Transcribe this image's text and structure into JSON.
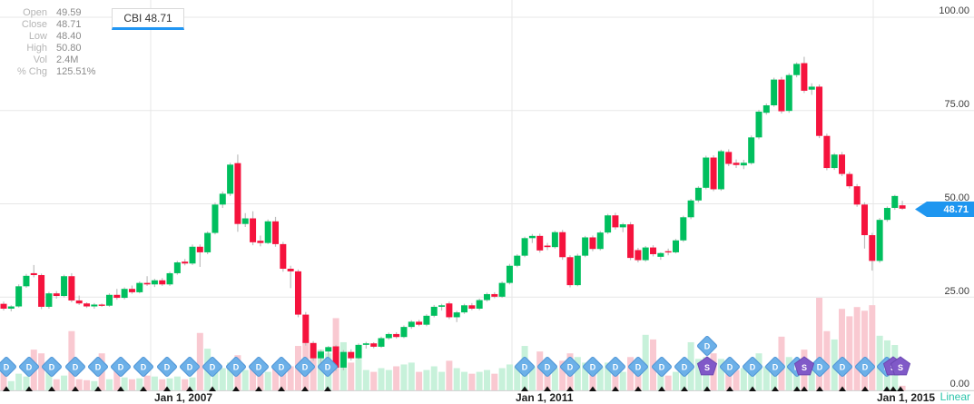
{
  "symbol_tab": {
    "label": "CBI 48.71"
  },
  "legend": {
    "rows": [
      {
        "label": "Open",
        "value": "49.59"
      },
      {
        "label": "Close",
        "value": "48.71"
      },
      {
        "label": "Low",
        "value": "48.40"
      },
      {
        "label": "High",
        "value": "50.80"
      },
      {
        "label": "Vol",
        "value": "2.4M"
      },
      {
        "label": "% Chg",
        "value": "125.51%"
      }
    ]
  },
  "price_tag": {
    "value": "48.71",
    "color": "#1e96f0"
  },
  "footer": {
    "scale_label": "Linear"
  },
  "chart_data": {
    "type": "candlestick",
    "title": "CBI monthly candlestick chart with volume, dividend (D) and split (S) markers",
    "ylim": [
      0,
      104
    ],
    "grid": true,
    "y_ticks": [
      {
        "value": 100,
        "label": "100.00"
      },
      {
        "value": 75,
        "label": "75.00"
      },
      {
        "value": 50,
        "label": "50.00"
      },
      {
        "value": 25,
        "label": "25.00"
      },
      {
        "value": 0,
        "label": "0.00"
      }
    ],
    "x_ticks": [
      {
        "px": 166,
        "label": "Jan 1, 2007"
      },
      {
        "px": 564,
        "label": "Jan 1, 2011"
      },
      {
        "px": 962,
        "label": "Jan 1, 2015"
      }
    ],
    "last_bar": {
      "open": 49.59,
      "close": 48.71,
      "low": 48.4,
      "high": 50.8,
      "vol": "2.4M",
      "pct_chg": "125.51%"
    },
    "candles": [
      [
        23.2,
        23.8,
        21.4,
        21.9,
        29
      ],
      [
        21.9,
        22.8,
        21.2,
        22.5,
        10
      ],
      [
        22.5,
        28.4,
        22.2,
        27.9,
        18
      ],
      [
        27.9,
        31.2,
        27.5,
        30.7,
        15
      ],
      [
        31.4,
        33.6,
        30.3,
        30.9,
        44
      ],
      [
        30.9,
        31.3,
        21.8,
        22.4,
        40
      ],
      [
        22.4,
        26.4,
        21.9,
        26.0,
        20
      ],
      [
        26.0,
        26.6,
        24.6,
        25.3,
        12
      ],
      [
        25.3,
        31.0,
        24.9,
        30.6,
        16
      ],
      [
        30.6,
        31.4,
        23.6,
        24.1,
        64
      ],
      [
        24.1,
        25.4,
        22.9,
        23.3,
        12
      ],
      [
        23.3,
        23.6,
        22.1,
        22.5,
        11
      ],
      [
        22.5,
        23.4,
        21.9,
        23.0,
        10
      ],
      [
        23.0,
        23.3,
        22.4,
        22.7,
        40
      ],
      [
        22.7,
        26.0,
        22.4,
        25.6,
        12
      ],
      [
        25.6,
        27.2,
        24.3,
        24.8,
        30
      ],
      [
        24.8,
        27.6,
        24.4,
        27.2,
        14
      ],
      [
        27.2,
        28.1,
        25.9,
        26.3,
        12
      ],
      [
        26.3,
        29.2,
        26.0,
        28.8,
        13
      ],
      [
        28.8,
        30.6,
        28.0,
        28.4,
        16
      ],
      [
        28.4,
        29.9,
        27.7,
        29.5,
        15
      ],
      [
        29.5,
        30.1,
        28.0,
        28.4,
        12
      ],
      [
        28.4,
        31.8,
        28.0,
        31.4,
        13
      ],
      [
        31.4,
        34.7,
        31.0,
        34.3,
        15
      ],
      [
        34.5,
        35.2,
        33.5,
        34.0,
        12
      ],
      [
        34.0,
        39.1,
        33.6,
        38.5,
        14
      ],
      [
        38.5,
        39.1,
        33.1,
        37.0,
        62
      ],
      [
        37.0,
        42.6,
        36.5,
        42.2,
        45
      ],
      [
        42.2,
        50.3,
        41.8,
        49.8,
        30
      ],
      [
        49.8,
        53.3,
        48.9,
        52.7,
        24
      ],
      [
        52.7,
        61.0,
        52.1,
        60.5,
        30
      ],
      [
        60.9,
        63.2,
        42.5,
        44.6,
        38
      ],
      [
        44.6,
        47.5,
        43.8,
        46.1,
        22
      ],
      [
        46.1,
        48.0,
        38.9,
        39.7,
        28
      ],
      [
        40.1,
        41.5,
        38.6,
        39.5,
        18
      ],
      [
        39.5,
        45.8,
        39.2,
        45.3,
        20
      ],
      [
        45.3,
        46.5,
        38.5,
        39.2,
        24
      ],
      [
        39.2,
        39.8,
        31.8,
        32.6,
        30
      ],
      [
        32.6,
        33.4,
        27.4,
        31.9,
        26
      ],
      [
        31.9,
        32.4,
        19.6,
        20.3,
        48
      ],
      [
        20.3,
        21.0,
        12.0,
        12.7,
        55
      ],
      [
        12.7,
        13.2,
        7.9,
        8.6,
        50
      ],
      [
        8.6,
        10.9,
        6.9,
        10.4,
        44
      ],
      [
        10.4,
        11.9,
        8.4,
        11.6,
        40
      ],
      [
        11.8,
        12.2,
        5.2,
        6.1,
        78
      ],
      [
        6.1,
        10.8,
        5.4,
        10.3,
        52
      ],
      [
        10.3,
        11.0,
        8.0,
        8.6,
        30
      ],
      [
        8.6,
        12.6,
        8.3,
        12.2,
        34
      ],
      [
        12.2,
        13.0,
        11.2,
        12.6,
        22
      ],
      [
        12.6,
        12.9,
        11.3,
        11.7,
        20
      ],
      [
        11.7,
        14.4,
        11.4,
        14.0,
        24
      ],
      [
        14.0,
        15.5,
        13.6,
        15.1,
        22
      ],
      [
        15.1,
        15.6,
        13.9,
        14.3,
        26
      ],
      [
        14.3,
        17.4,
        14.0,
        17.0,
        28
      ],
      [
        17.0,
        18.8,
        16.5,
        18.4,
        30
      ],
      [
        18.4,
        18.9,
        17.2,
        17.6,
        20
      ],
      [
        17.6,
        20.4,
        17.2,
        20.0,
        22
      ],
      [
        20.0,
        22.9,
        19.6,
        22.4,
        26
      ],
      [
        22.4,
        23.2,
        21.4,
        22.8,
        20
      ],
      [
        23.3,
        23.8,
        19.1,
        19.6,
        32
      ],
      [
        19.6,
        21.3,
        18.3,
        20.9,
        24
      ],
      [
        20.9,
        23.2,
        20.5,
        22.8,
        20
      ],
      [
        22.8,
        23.4,
        21.5,
        21.9,
        18
      ],
      [
        21.9,
        24.6,
        21.5,
        24.2,
        20
      ],
      [
        24.2,
        26.2,
        23.8,
        25.8,
        22
      ],
      [
        25.8,
        26.3,
        24.7,
        25.1,
        18
      ],
      [
        25.1,
        29.2,
        24.8,
        28.8,
        24
      ],
      [
        28.8,
        33.9,
        28.4,
        33.4,
        28
      ],
      [
        33.4,
        36.5,
        33.0,
        36.1,
        26
      ],
      [
        36.1,
        41.2,
        35.7,
        40.8,
        48
      ],
      [
        40.8,
        41.9,
        39.5,
        41.4,
        26
      ],
      [
        41.4,
        42.0,
        36.9,
        37.5,
        42
      ],
      [
        38.8,
        39.5,
        37.6,
        38.4,
        20
      ],
      [
        38.4,
        42.8,
        38.0,
        42.4,
        24
      ],
      [
        42.4,
        43.0,
        35.0,
        35.7,
        32
      ],
      [
        35.7,
        36.2,
        27.6,
        28.2,
        40
      ],
      [
        28.2,
        36.6,
        27.9,
        36.1,
        36
      ],
      [
        36.1,
        41.4,
        35.7,
        41.0,
        30
      ],
      [
        41.0,
        41.5,
        37.3,
        37.9,
        24
      ],
      [
        37.9,
        42.7,
        37.5,
        42.3,
        26
      ],
      [
        42.3,
        47.3,
        41.9,
        46.9,
        30
      ],
      [
        46.9,
        47.6,
        43.1,
        43.7,
        26
      ],
      [
        43.7,
        44.9,
        42.4,
        44.5,
        20
      ],
      [
        44.5,
        45.1,
        34.9,
        35.5,
        36
      ],
      [
        37.6,
        38.2,
        34.3,
        34.9,
        26
      ],
      [
        34.9,
        38.7,
        34.5,
        38.3,
        60
      ],
      [
        38.3,
        38.9,
        35.9,
        36.5,
        55
      ],
      [
        35.8,
        37.0,
        35.0,
        36.8,
        18
      ],
      [
        37.3,
        38.0,
        36.2,
        37.0,
        16
      ],
      [
        37.0,
        40.6,
        36.7,
        40.2,
        20
      ],
      [
        40.2,
        46.8,
        39.8,
        46.4,
        24
      ],
      [
        46.4,
        51.3,
        45.9,
        50.9,
        52
      ],
      [
        50.9,
        54.7,
        50.4,
        54.3,
        34
      ],
      [
        54.3,
        62.9,
        53.9,
        62.4,
        36
      ],
      [
        62.4,
        63.0,
        53.4,
        53.9,
        40
      ],
      [
        53.9,
        64.5,
        53.5,
        64.1,
        34
      ],
      [
        63.9,
        64.6,
        60.1,
        60.7,
        28
      ],
      [
        61.0,
        61.9,
        59.6,
        60.4,
        22
      ],
      [
        60.3,
        61.8,
        59.3,
        61.0,
        24
      ],
      [
        60.9,
        68.3,
        60.5,
        67.8,
        30
      ],
      [
        67.8,
        75.2,
        67.3,
        74.7,
        40
      ],
      [
        74.4,
        76.9,
        73.9,
        76.4,
        26
      ],
      [
        76.4,
        83.8,
        76.0,
        83.3,
        32
      ],
      [
        83.3,
        84.0,
        74.2,
        74.8,
        58
      ],
      [
        74.9,
        85.0,
        74.4,
        84.5,
        36
      ],
      [
        84.5,
        87.9,
        83.9,
        87.5,
        30
      ],
      [
        87.7,
        89.4,
        79.7,
        80.3,
        44
      ],
      [
        80.6,
        82.3,
        79.2,
        81.4,
        28
      ],
      [
        81.4,
        82.0,
        67.6,
        68.2,
        100
      ],
      [
        68.2,
        68.8,
        59.0,
        59.6,
        64
      ],
      [
        59.6,
        63.6,
        59.1,
        63.2,
        55
      ],
      [
        63.2,
        63.9,
        57.4,
        58.0,
        88
      ],
      [
        58.0,
        58.6,
        54.1,
        54.7,
        80
      ],
      [
        54.7,
        55.3,
        49.2,
        49.8,
        90
      ],
      [
        49.8,
        50.4,
        38.0,
        41.6,
        86
      ],
      [
        41.6,
        42.2,
        32.1,
        34.7,
        92
      ],
      [
        34.7,
        46.2,
        34.2,
        45.7,
        59
      ],
      [
        45.7,
        49.3,
        45.2,
        48.9,
        54
      ],
      [
        48.9,
        52.4,
        48.4,
        52.1,
        49
      ],
      [
        49.59,
        50.8,
        48.4,
        48.71,
        5
      ]
    ],
    "markers": {
      "dividend_letter": "D",
      "split_letter": "S",
      "dividends_x": [
        7,
        32,
        57,
        83,
        108,
        133,
        158,
        184,
        209,
        234,
        260,
        285,
        310,
        336,
        361,
        578,
        603,
        628,
        653,
        678,
        703,
        729,
        754,
        804,
        829,
        854,
        878,
        903,
        928,
        953,
        977
      ],
      "raised_dividends_x": [
        779
      ],
      "splits_x": [
        779,
        886,
        984,
        992
      ]
    },
    "colors": {
      "up": "#00bf5e",
      "down": "#f5133d",
      "wick": "#bdbdbd",
      "vol_up": "#c7f1da",
      "vol_down": "#f9c9d1",
      "grid": "#e7e7e7",
      "axis_line": "#d5d5d5",
      "dividend_fill": "#6cb0e8",
      "dividend_stroke": "#4f95d6",
      "split_fill": "#8059c8",
      "split_stroke": "#6a47b2",
      "event_tick": "#111111"
    }
  }
}
